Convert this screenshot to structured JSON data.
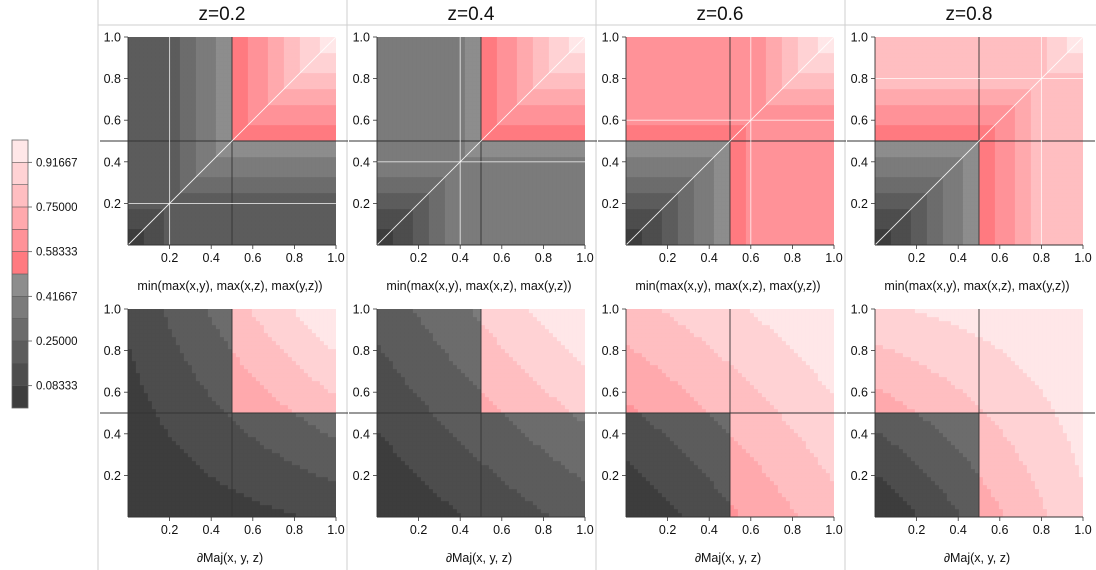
{
  "chart_data": {
    "type": "contour",
    "column_titles": [
      "z=0.2",
      "z=0.4",
      "z=0.6",
      "z=0.8"
    ],
    "z_values": [
      0.2,
      0.4,
      0.6,
      0.8
    ],
    "row_xlabels": [
      "min(max(x,y), max(x,z), max(y,z))",
      "∂Maj(x, y, z)"
    ],
    "x_ticks": [
      "0.2",
      "0.4",
      "0.6",
      "0.8",
      "1.0"
    ],
    "y_ticks": [
      "0.2",
      "0.4",
      "0.6",
      "0.8",
      "1.0"
    ],
    "x_range": [
      0,
      1
    ],
    "y_range": [
      0,
      1
    ],
    "threshold": 0.5,
    "legend": {
      "labels": [
        "0.91667",
        "0.75000",
        "0.58333",
        "0.41667",
        "0.25000",
        "0.08333"
      ],
      "bands": [
        0,
        0.08333,
        0.16667,
        0.25,
        0.33333,
        0.41667,
        0.5,
        0.58333,
        0.66667,
        0.75,
        0.83333,
        0.91667,
        1.0
      ],
      "colors": [
        "#3d3d3d",
        "#4d4d4d",
        "#5c5c5c",
        "#6c6c6c",
        "#7b7b7b",
        "#8d8d8d",
        "#ff7a80",
        "#ff9298",
        "#ffa9ad",
        "#ffbec1",
        "#ffd2d4",
        "#ffe7e8"
      ]
    }
  }
}
